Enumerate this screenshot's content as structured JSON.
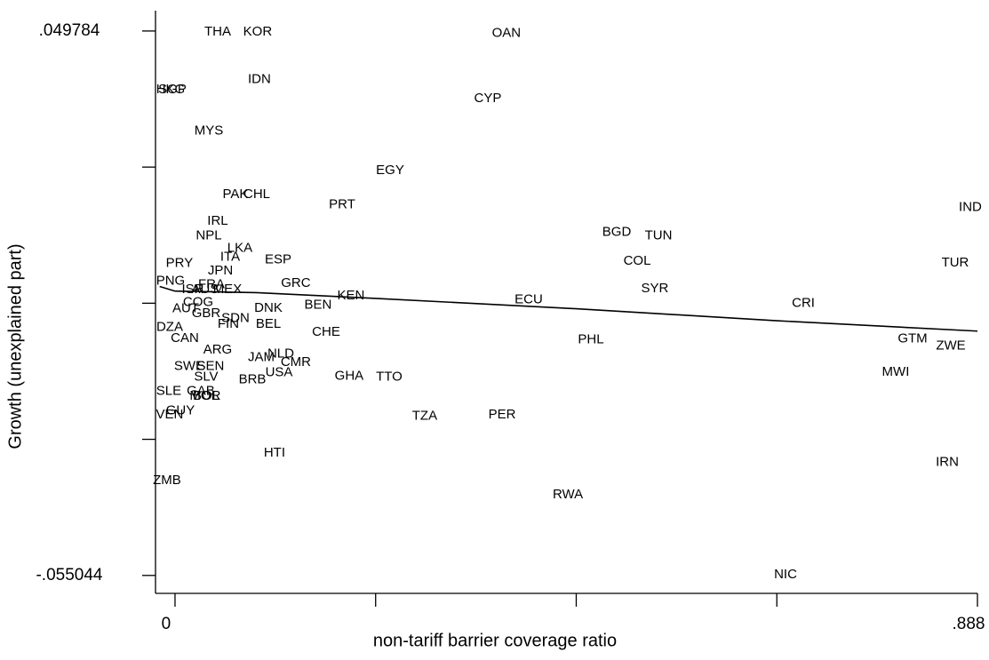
{
  "chart_data": {
    "type": "scatter",
    "x_label": "non-tariff barrier coverage ratio",
    "y_label": "Growth (unexplained part)",
    "xlim": [
      -0.0216,
      0.888
    ],
    "ylim": [
      -0.0585,
      0.0537
    ],
    "xticks": [
      0,
      {
        "value": 0.222,
        "label": null
      },
      {
        "value": 0.444,
        "label": null
      },
      {
        "value": 0.666,
        "label": null
      },
      {
        "value": 0.888,
        "label": ".888"
      }
    ],
    "yticks": [
      {
        "value": 0.049784,
        "label": ".049784"
      },
      {
        "value": 0.023577,
        "label": null
      },
      {
        "value": -0.00263,
        "label": null
      },
      {
        "value": -0.028837,
        "label": null
      },
      {
        "value": -0.055044,
        "label": "-.055044"
      }
    ],
    "color": "#000000",
    "labels": [
      "THA",
      "KOR",
      "OAN",
      "HKG",
      "SGP",
      "IDN",
      "CYP",
      "MYS",
      "EGY",
      "PAK",
      "CHL",
      "PRT",
      "IND",
      "IRL",
      "NPL",
      "BGD",
      "TUN",
      "LKA",
      "ITA",
      "ESP",
      "PRY",
      "COL",
      "TUR",
      "JPN",
      "PNG",
      "FRA",
      "ISR",
      "GRC",
      "MEX",
      "KEN",
      "AUS",
      "ECU",
      "SYR",
      "COG",
      "BEN",
      "CRI",
      "AUT",
      "DNK",
      "GBR",
      "SDN",
      "FIN",
      "BEL",
      "DZA",
      "CHE",
      "CAN",
      "PHL",
      "GTM",
      "ZWE",
      "ARG",
      "NLD",
      "JAM",
      "CMR",
      "SWE",
      "SEN",
      "USA",
      "MWI",
      "SLV",
      "GHA",
      "TTO",
      "BRB",
      "SLE",
      "GAB",
      "MOR",
      "BOL",
      "GUY",
      "VEN",
      "TZA",
      "PER",
      "HTI",
      "IRN",
      "ZMB",
      "RWA",
      "NIC"
    ],
    "x": [
      0.0472,
      0.0914,
      0.3667,
      -0.0049,
      -0.0029,
      0.0934,
      0.3461,
      0.0374,
      0.238,
      0.0669,
      0.0905,
      0.1849,
      0.8801,
      0.0472,
      0.0374,
      0.4888,
      0.535,
      0.0718,
      0.061,
      0.1141,
      0.0049,
      0.5114,
      0.8634,
      0.0502,
      -0.0049,
      0.0403,
      0.0197,
      0.1337,
      0.058,
      0.1947,
      0.0334,
      0.3914,
      0.531,
      0.0256,
      0.1583,
      0.6953,
      0.0118,
      0.1033,
      0.0344,
      0.0669,
      0.059,
      0.1033,
      -0.0059,
      0.1672,
      0.0108,
      0.4602,
      0.8162,
      0.8585,
      0.0472,
      0.117,
      0.0954,
      0.1337,
      0.0157,
      0.0393,
      0.1151,
      0.7975,
      0.0344,
      0.1927,
      0.237,
      0.0856,
      -0.0069,
      0.0285,
      0.0334,
      0.0344,
      0.0059,
      -0.0059,
      0.2763,
      0.3619,
      0.1101,
      0.8546,
      -0.0089,
      0.4347,
      0.6756
    ],
    "values": [
      0.0496,
      0.0496,
      0.0493,
      0.0385,
      0.0385,
      0.0404,
      0.0368,
      0.0305,
      0.0229,
      0.0183,
      0.0183,
      0.0163,
      0.0158,
      0.0132,
      0.0103,
      0.011,
      0.0103,
      0.0079,
      0.0062,
      0.0057,
      0.005,
      0.0055,
      0.0051,
      0.0036,
      0.0016,
      0.0009,
      0.0,
      0.0012,
      0.0,
      -0.0012,
      0.0,
      -0.002,
      0.0002,
      -0.0025,
      -0.003,
      -0.0027,
      -0.0037,
      -0.0036,
      -0.0046,
      -0.0056,
      -0.0067,
      -0.0067,
      -0.0073,
      -0.0082,
      -0.0094,
      -0.0097,
      -0.0095,
      -0.0109,
      -0.0116,
      -0.0124,
      -0.0131,
      -0.014,
      -0.0148,
      -0.0148,
      -0.016,
      -0.0159,
      -0.0169,
      -0.0167,
      -0.0169,
      -0.0174,
      -0.0196,
      -0.0196,
      -0.0205,
      -0.0205,
      -0.0234,
      -0.0241,
      -0.0244,
      -0.0241,
      -0.0315,
      -0.0333,
      -0.0368,
      -0.0395,
      -0.0549
    ],
    "fit": {
      "x": [
        -0.017,
        0.0,
        0.09,
        0.222,
        0.444,
        0.666,
        0.888
      ],
      "values": [
        0.0006,
        -0.0003,
        -0.0006,
        -0.0017,
        -0.0037,
        -0.006,
        -0.008
      ]
    }
  }
}
